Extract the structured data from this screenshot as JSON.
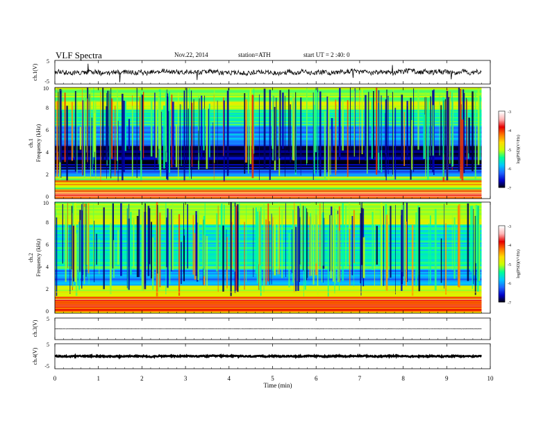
{
  "header": {
    "title": "VLF  Spectra",
    "date": "Nov.22, 2014",
    "station": "station=ATH",
    "start": "start  UT =  2 :40: 0"
  },
  "colors": {
    "colormap": [
      "#000000",
      "#0000c8",
      "#1e64ff",
      "#00c8ff",
      "#00ff96",
      "#c8ff00",
      "#ffdc00",
      "#ff7800",
      "#e60000",
      "#ffb4b4",
      "#ffffff"
    ],
    "trace": "#000000",
    "frame": "#000000"
  },
  "chart_data": [
    {
      "type": "line",
      "name": "waveform-ch1",
      "ylabel": "ch.1(V)",
      "ylim": [
        -5,
        5
      ],
      "yticklabels": [
        "5",
        "-5"
      ],
      "level": 0,
      "noise_amplitude": 1.0,
      "x_end_min": 9.8
    },
    {
      "type": "heatmap",
      "name": "spectrogram-ch1",
      "ylabel_channel": "ch.1",
      "ylabel": "Frequency  (kHz)",
      "ylim": [
        0,
        10
      ],
      "yticklabels": [
        "0",
        "2",
        "4",
        "6",
        "8",
        "10"
      ],
      "colorbar": {
        "label": "log(PSD)(V²/Hz)",
        "range": [
          -7,
          -3
        ],
        "ticklabels": [
          "-3",
          "-4",
          "-5",
          "-6",
          "-7"
        ]
      },
      "band_profile": [
        {
          "f": [
            0,
            0.3
          ],
          "psd": -4.0
        },
        {
          "f": [
            0.3,
            0.8
          ],
          "psd": -3.6
        },
        {
          "f": [
            0.8,
            2.0
          ],
          "psd": -5.0
        },
        {
          "f": [
            2.0,
            2.6
          ],
          "psd": -6.2
        },
        {
          "f": [
            2.6,
            4.8
          ],
          "psd": -6.7
        },
        {
          "f": [
            4.8,
            6.5
          ],
          "psd": -6.0
        },
        {
          "f": [
            6.5,
            8.0
          ],
          "psd": -5.5
        },
        {
          "f": [
            8.0,
            10.0
          ],
          "psd": -5.0
        }
      ]
    },
    {
      "type": "heatmap",
      "name": "spectrogram-ch2",
      "ylabel_channel": "ch.2",
      "ylabel": "Frequency  (kHz)",
      "ylim": [
        0,
        10
      ],
      "yticklabels": [
        "0",
        "2",
        "4",
        "6",
        "8",
        "10"
      ],
      "colorbar": {
        "label": "log(PSD)(V²/Hz)",
        "range": [
          -7,
          -3
        ],
        "ticklabels": [
          "-3",
          "-4",
          "-5",
          "-6",
          "-7"
        ]
      },
      "band_profile": [
        {
          "f": [
            0,
            0.3
          ],
          "psd": -4.5
        },
        {
          "f": [
            0.3,
            1.5
          ],
          "psd": -4.0
        },
        {
          "f": [
            1.5,
            2.5
          ],
          "psd": -5.0
        },
        {
          "f": [
            2.5,
            4.0
          ],
          "psd": -6.0
        },
        {
          "f": [
            4.0,
            5.5
          ],
          "psd": -5.5
        },
        {
          "f": [
            5.5,
            8.0
          ],
          "psd": -5.6
        },
        {
          "f": [
            8.0,
            10.0
          ],
          "psd": -5.0
        }
      ]
    },
    {
      "type": "line",
      "name": "waveform-ch3",
      "ylabel": "ch.3(V)",
      "ylim": [
        -5,
        5
      ],
      "yticklabels": [
        "5"
      ],
      "level": 0,
      "noise_amplitude": 0.08,
      "x_end_min": 9.8
    },
    {
      "type": "line",
      "name": "waveform-ch4",
      "ylabel": "ch.4(V)",
      "ylim": [
        -5,
        5
      ],
      "yticklabels": [
        "5",
        "-5"
      ],
      "level": 0,
      "noise_amplitude": 0.25,
      "x_end_min": 9.8
    }
  ],
  "xaxis": {
    "label": "Time  (min)",
    "range": [
      0,
      10
    ],
    "ticklabels": [
      "0",
      "1",
      "2",
      "3",
      "4",
      "5",
      "6",
      "7",
      "8",
      "9",
      "10"
    ]
  }
}
